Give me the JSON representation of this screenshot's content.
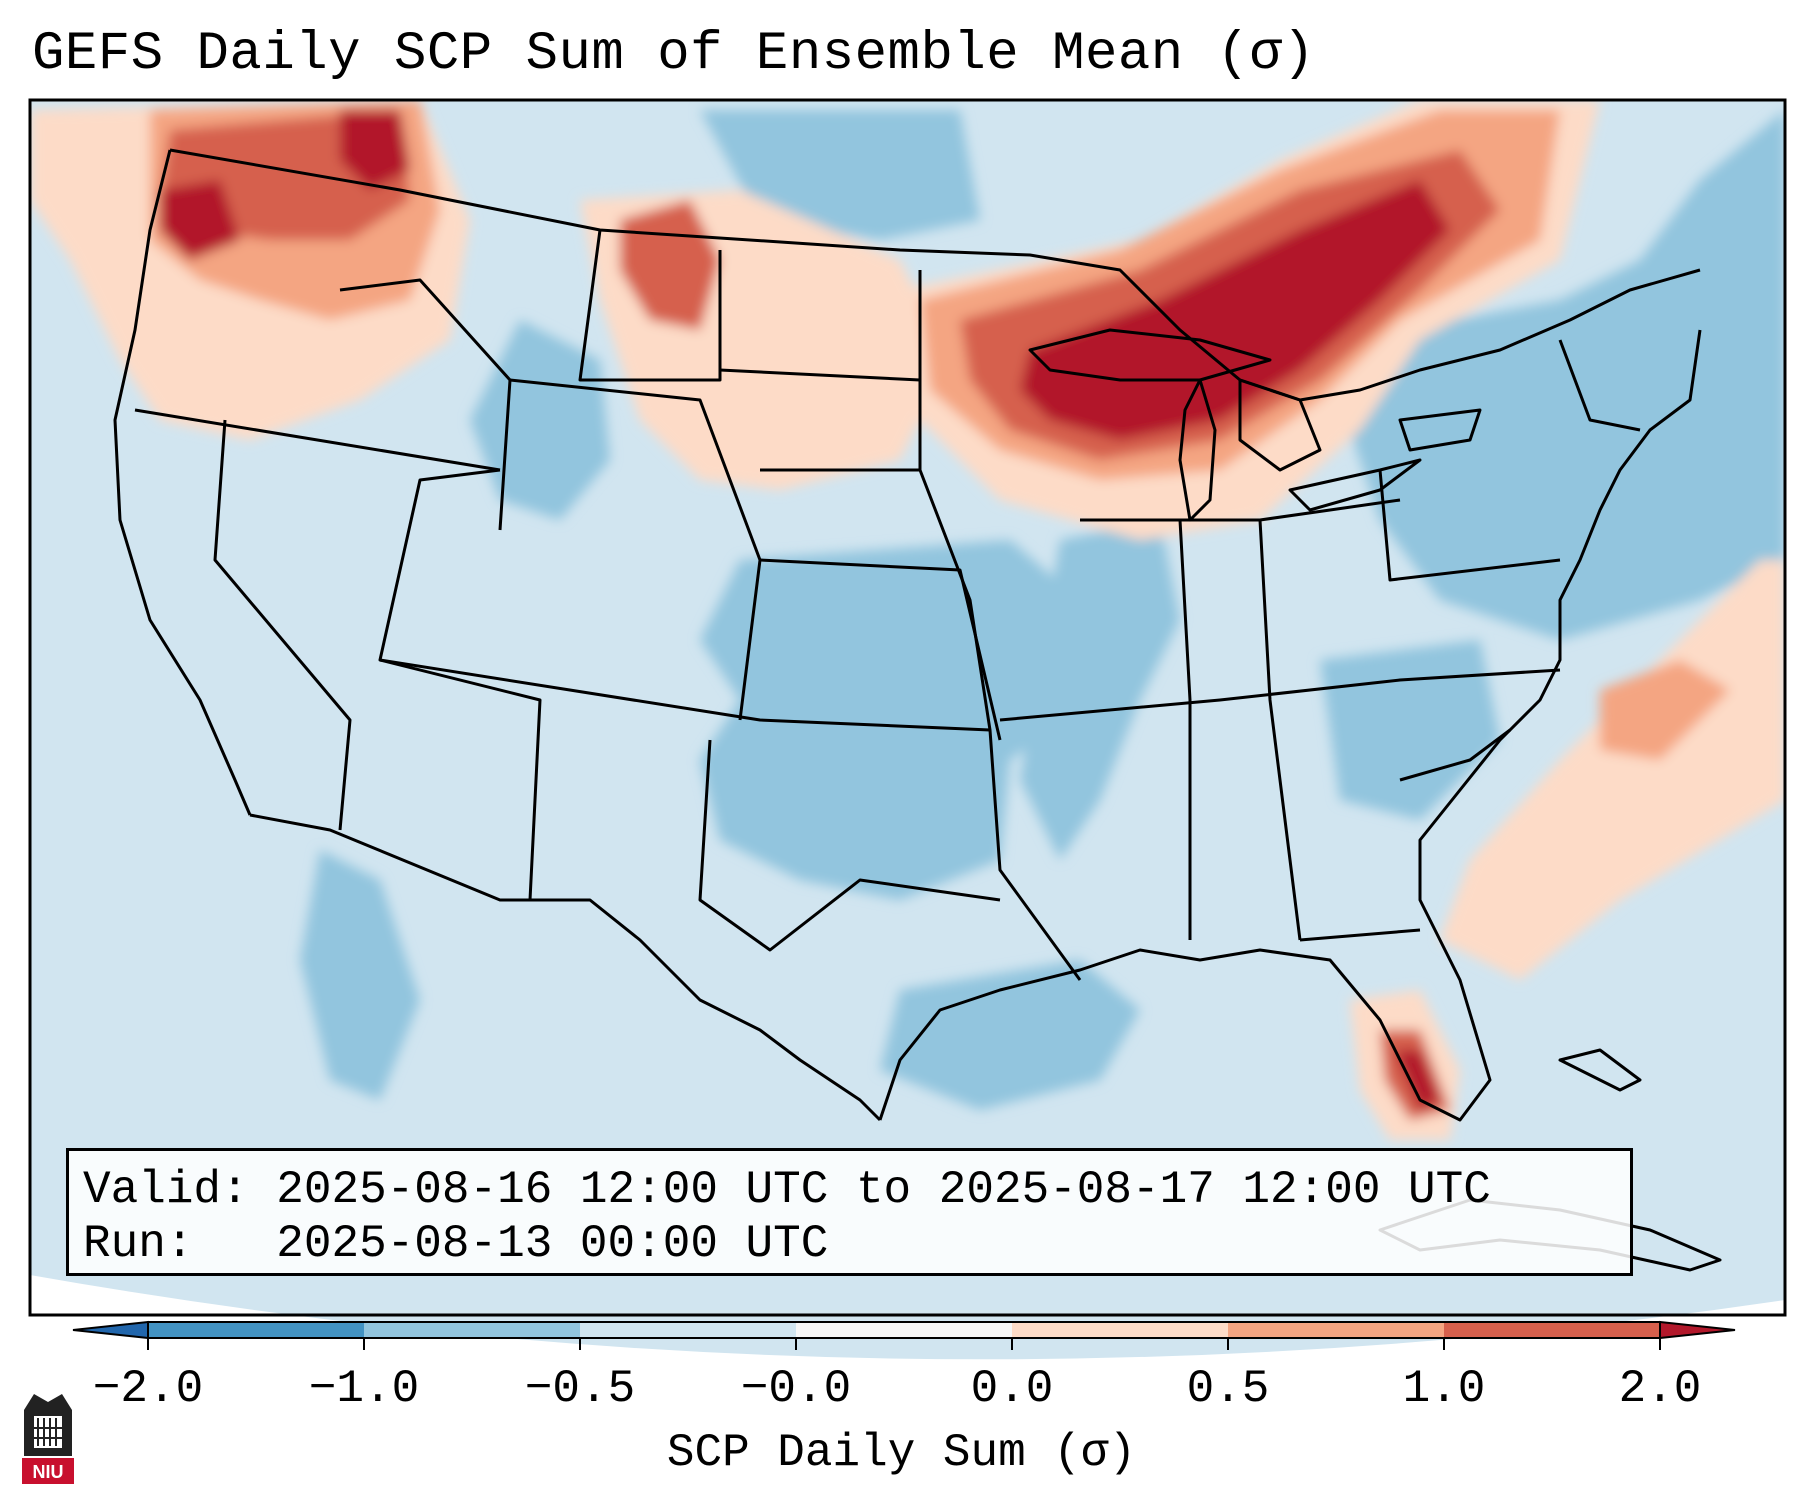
{
  "title": "GEFS Daily SCP Sum of Ensemble Mean (σ)",
  "info": {
    "valid_label": "Valid:",
    "valid_range": "2025-08-16 12:00 UTC to 2025-08-17 12:00 UTC",
    "run_label": "Run:",
    "run_time": "2025-08-13 00:00 UTC"
  },
  "colorbar": {
    "label": "SCP Daily Sum (σ)",
    "ticks": [
      "−2.0",
      "−1.0",
      "−0.5",
      "−0.0",
      "0.0",
      "0.5",
      "1.0",
      "2.0"
    ],
    "bins": [
      {
        "from": "−2.0",
        "to": "−1.0",
        "color": "#4393c3"
      },
      {
        "from": "−1.0",
        "to": "−0.5",
        "color": "#92c5de"
      },
      {
        "from": "−0.5",
        "to": "−0.0",
        "color": "#d1e5f0"
      },
      {
        "from": "−0.0",
        "to": "0.0",
        "color": "#f7f7f7"
      },
      {
        "from": "0.0",
        "to": "0.5",
        "color": "#fddbc7"
      },
      {
        "from": "0.5",
        "to": "1.0",
        "color": "#f4a582"
      },
      {
        "from": "1.0",
        "to": "2.0",
        "color": "#d6604d"
      }
    ],
    "under_color": "#2166ac",
    "over_color": "#b2182b"
  },
  "map": {
    "background_color": "#d1e5f0",
    "regions": [
      {
        "name": "Pacific Northwest",
        "level": "high",
        "color": "#b2182b"
      },
      {
        "name": "Great Lakes",
        "level": "high",
        "color": "#b2182b"
      },
      {
        "name": "South Florida",
        "level": "high",
        "color": "#b2182b"
      },
      {
        "name": "Northern Plains",
        "level": "moderate",
        "color": "#d6604d"
      },
      {
        "name": "Western Atlantic",
        "level": "moderate",
        "color": "#f4a582"
      },
      {
        "name": "Southern Plains",
        "level": "low",
        "color": "#92c5de"
      },
      {
        "name": "Gulf of Mexico",
        "level": "low",
        "color": "#92c5de"
      },
      {
        "name": "Northeast",
        "level": "low",
        "color": "#92c5de"
      }
    ]
  },
  "logo": {
    "text": "NIU"
  }
}
